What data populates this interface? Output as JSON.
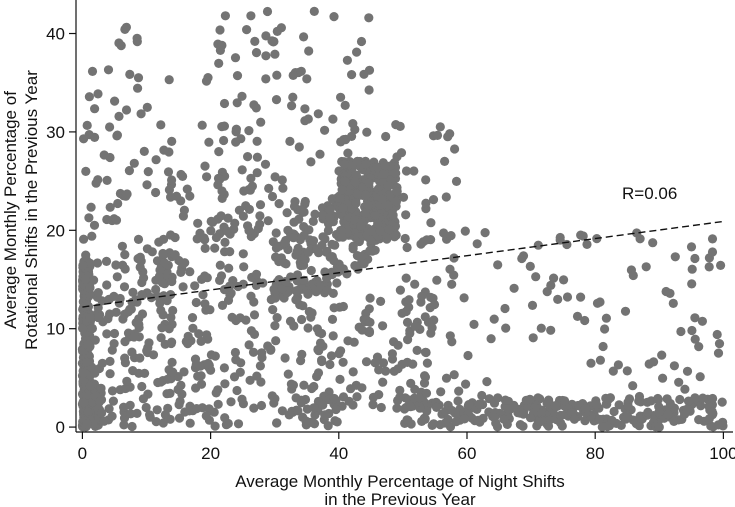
{
  "chart_data": {
    "type": "scatter",
    "title": "",
    "xlabel": [
      "Average Monthly Percentage of Night Shifts",
      "in the Previous Year"
    ],
    "ylabel": [
      "Average Monthly Percentage of",
      "Rotational Shifts in the Previous Year"
    ],
    "xlim": [
      -1,
      101.5
    ],
    "ylim": [
      -0.5,
      43
    ],
    "x_ticks": [
      0,
      20,
      40,
      60,
      80,
      100
    ],
    "y_ticks": [
      0,
      10,
      20,
      30,
      40
    ],
    "grid": false,
    "legend": null,
    "point_color": "#737373",
    "line_color": "#111111",
    "fit_line": {
      "style": "dashed",
      "x": [
        0,
        100
      ],
      "y": [
        12.2,
        20.9
      ],
      "label": "R=0.06",
      "label_at": [
        88.5,
        23.2
      ]
    },
    "clusters": [
      {
        "n": 220,
        "cx": [
          0,
          1.2
        ],
        "cy": [
          0,
          17
        ],
        "shape": "uniform"
      },
      {
        "n": 60,
        "cx": [
          0,
          3
        ],
        "cy": [
          0,
          4
        ],
        "shape": "uniform"
      },
      {
        "n": 160,
        "cx": [
          0,
          14
        ],
        "cy": [
          0,
          17
        ],
        "shape": "uniform"
      },
      {
        "n": 70,
        "cx": [
          0,
          14
        ],
        "cy": [
          17,
          41
        ],
        "shape": "uniform"
      },
      {
        "n": 240,
        "cx": [
          12,
          35
        ],
        "cy": [
          3,
          26
        ],
        "shape": "uniform"
      },
      {
        "n": 180,
        "cx": [
          30,
          46
        ],
        "cy": [
          13,
          24
        ],
        "shape": "band",
        "slope": 0.55,
        "base": -3
      },
      {
        "n": 260,
        "cx": [
          40,
          49
        ],
        "cy": [
          19,
          27
        ],
        "shape": "uniform"
      },
      {
        "n": 90,
        "cx": [
          18,
          45
        ],
        "cy": [
          26,
          42.5
        ],
        "shape": "uniform"
      },
      {
        "n": 120,
        "cx": [
          35,
          55
        ],
        "cy": [
          0,
          14
        ],
        "shape": "uniform"
      },
      {
        "n": 260,
        "cx": [
          50,
          100
        ],
        "cy": [
          0,
          3
        ],
        "shape": "uniform"
      },
      {
        "n": 110,
        "cx": [
          50,
          100
        ],
        "cy": [
          3,
          20
        ],
        "shape": "uniform"
      },
      {
        "n": 40,
        "cx": [
          46,
          60
        ],
        "cy": [
          18,
          31
        ],
        "shape": "uniform"
      },
      {
        "n": 60,
        "cx": [
          14,
          40
        ],
        "cy": [
          0,
          3
        ],
        "shape": "uniform"
      }
    ],
    "seed": 20240517
  }
}
